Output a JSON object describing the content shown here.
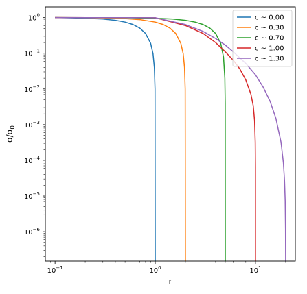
{
  "chart_data": {
    "type": "line",
    "title": "",
    "xlabel": "r",
    "ylabel": "σ/σ₀",
    "xscale": "log",
    "yscale": "log",
    "xlim": [
      0.08,
      25
    ],
    "ylim": [
      1.5e-07,
      2.0
    ],
    "grid": false,
    "legend_position": "top-right",
    "xticks": [
      {
        "value": 0.1,
        "base": "10",
        "exp": "−1"
      },
      {
        "value": 1,
        "base": "10",
        "exp": "0"
      },
      {
        "value": 10,
        "base": "10",
        "exp": "1"
      }
    ],
    "yticks": [
      {
        "value": 1e-06,
        "base": "10",
        "exp": "−6"
      },
      {
        "value": 1e-05,
        "base": "10",
        "exp": "−5"
      },
      {
        "value": 0.0001,
        "base": "10",
        "exp": "−4"
      },
      {
        "value": 0.001,
        "base": "10",
        "exp": "−3"
      },
      {
        "value": 0.01,
        "base": "10",
        "exp": "−2"
      },
      {
        "value": 0.1,
        "base": "10",
        "exp": "−1"
      },
      {
        "value": 1,
        "base": "10",
        "exp": "0"
      }
    ],
    "series": [
      {
        "name": "c ~ 0.00",
        "color": "#1f77b4",
        "x": [
          0.1,
          0.15,
          0.2,
          0.3,
          0.4,
          0.5,
          0.6,
          0.7,
          0.8,
          0.9,
          0.95,
          0.98,
          0.995,
          1.0
        ],
        "y": [
          1.0,
          0.98,
          0.96,
          0.91,
          0.84,
          0.75,
          0.64,
          0.51,
          0.36,
          0.19,
          0.0975,
          0.0396,
          0.00998,
          1.5e-07
        ]
      },
      {
        "name": "c ~ 0.30",
        "color": "#ff7f0e",
        "x": [
          0.1,
          0.2,
          0.3,
          0.5,
          0.7,
          1.0,
          1.2,
          1.4,
          1.6,
          1.8,
          1.9,
          1.96,
          1.99,
          2.0
        ],
        "y": [
          1.0,
          0.99,
          0.98,
          0.94,
          0.88,
          0.75,
          0.64,
          0.51,
          0.36,
          0.19,
          0.0975,
          0.0396,
          0.00998,
          1.5e-07
        ]
      },
      {
        "name": "c ~ 0.70",
        "color": "#2ca02c",
        "x": [
          0.1,
          0.2,
          0.5,
          1.0,
          1.5,
          2.0,
          2.5,
          3.0,
          3.5,
          4.0,
          4.5,
          4.8,
          4.95,
          4.99,
          5.0
        ],
        "y": [
          1.0,
          0.998,
          0.99,
          0.96,
          0.91,
          0.84,
          0.75,
          0.64,
          0.51,
          0.36,
          0.19,
          0.078,
          0.0199,
          0.004,
          1.5e-07
        ]
      },
      {
        "name": "c ~ 1.00",
        "color": "#d62728",
        "x": [
          0.1,
          0.3,
          0.5,
          1.0,
          2.0,
          3.0,
          4.0,
          5.0,
          6.0,
          7.0,
          8.0,
          9.0,
          9.5,
          9.8,
          9.95,
          9.99,
          10.0
        ],
        "y": [
          1.0,
          0.999,
          0.995,
          0.99,
          0.6,
          0.36,
          0.2,
          0.11,
          0.064,
          0.036,
          0.018,
          0.0072,
          0.0034,
          0.0013,
          0.00032,
          6.4e-05,
          1.5e-07
        ]
      },
      {
        "name": "c ~ 1.30",
        "color": "#9467bd",
        "x": [
          0.1,
          0.3,
          0.5,
          1.0,
          2.0,
          3.0,
          4.0,
          5.0,
          6.0,
          8.0,
          10.0,
          12.0,
          14.0,
          16.0,
          18.0,
          19.0,
          19.5,
          19.8,
          19.95,
          20.0
        ],
        "y": [
          1.0,
          0.999,
          0.998,
          0.99,
          0.64,
          0.41,
          0.26,
          0.17,
          0.11,
          0.052,
          0.025,
          0.011,
          0.0045,
          0.0015,
          0.00032,
          8.5e-05,
          2.7e-05,
          7.3e-06,
          1.2e-06,
          1.5e-07
        ]
      }
    ]
  }
}
